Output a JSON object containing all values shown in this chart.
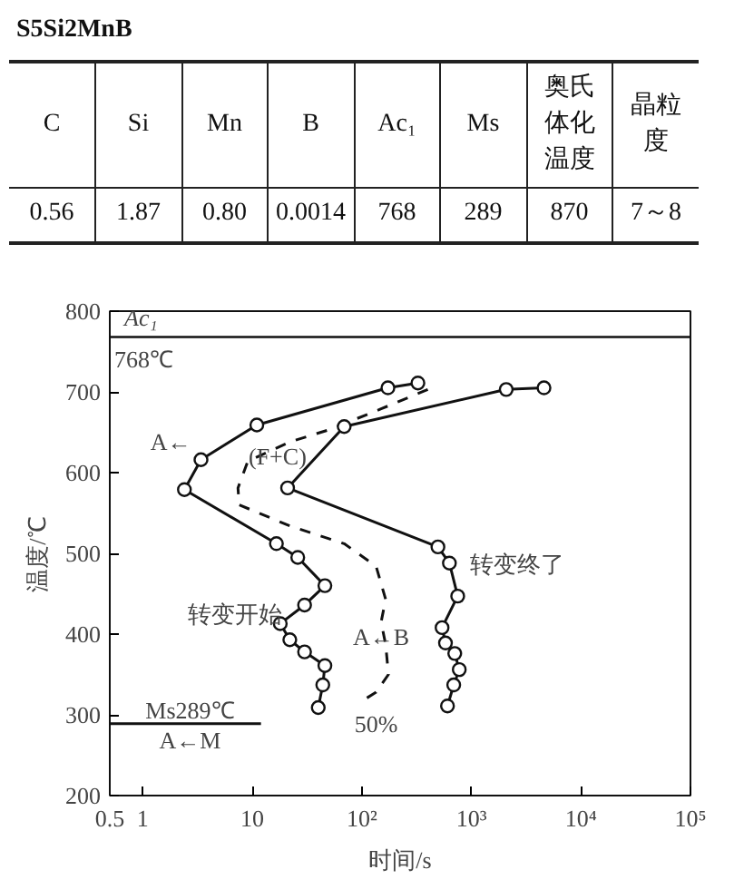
{
  "chart_data": {
    "type": "line",
    "title": "S5Si2MnB",
    "xlabel": "时间/s",
    "ylabel": "温度/℃",
    "log": "x",
    "grid": false,
    "xlim": [
      0.5,
      100000
    ],
    "ylim": [
      200,
      800
    ],
    "xticks": [
      0.5,
      1,
      10,
      {
        "value": 100,
        "label": "10²"
      },
      {
        "value": 1000,
        "label": "10³"
      },
      {
        "value": 10000,
        "label": "10⁴"
      },
      {
        "value": 100000,
        "label": "10⁵"
      }
    ],
    "yticks": [
      200,
      300,
      400,
      500,
      600,
      700,
      800
    ],
    "series": [
      {
        "color": "#111111",
        "marker": "circle",
        "line_style": "solid",
        "x": [
          325,
          173,
          11,
          3.4,
          2.4,
          16.6,
          26,
          46,
          30,
          18,
          22,
          30,
          46,
          44,
          40
        ],
        "values": [
          711,
          705,
          659,
          616,
          579,
          512,
          495,
          460,
          436,
          413,
          393,
          378,
          361,
          337,
          309
        ]
      },
      {
        "color": "#111111",
        "marker": "none",
        "line_style": "dashed",
        "x": [
          400,
          150,
          50,
          22,
          9.1,
          7.4,
          7.6,
          22,
          69,
          135,
          165,
          150,
          165,
          175,
          135,
          100
        ],
        "values": [
          703,
          679,
          653,
          638,
          614,
          581,
          560,
          534,
          512,
          484,
          443,
          415,
          387,
          350,
          328,
          317
        ]
      },
      {
        "color": "#111111",
        "marker": "circle",
        "line_style": "solid",
        "x": [
          4600,
          2080,
          69,
          21,
          495,
          630,
          750,
          540,
          580,
          705,
          775,
          690,
          605
        ],
        "values": [
          705,
          703,
          657,
          581,
          508,
          488,
          447,
          408,
          389,
          376,
          356,
          337,
          311
        ]
      },
      {
        "color": "#111111",
        "marker": "none",
        "line_style": "solid",
        "x": [
          0.5,
          12
        ],
        "values": [
          289,
          289
        ]
      }
    ],
    "ref_lines": [
      {
        "axis": "y",
        "value": 768,
        "label": "Ac₁",
        "color": "#111111",
        "line_style": "solid"
      }
    ],
    "annotations": [
      "C",
      "Si",
      "Mn",
      "B",
      "Ac₁",
      "Ms",
      "奥氏体化温度",
      "晶粒度",
      "0.56",
      "1.87",
      "0.80",
      "0.0014",
      "768",
      "289",
      "870",
      "7～8",
      "768℃",
      "A←",
      "转变开始",
      "转变终了",
      "50%",
      "Ms289℃",
      "A←M",
      {
        "text": "(F+C)",
        "x": 17,
        "y": 620
      },
      {
        "text": "A←B",
        "x": 150,
        "y": 397
      }
    ]
  }
}
